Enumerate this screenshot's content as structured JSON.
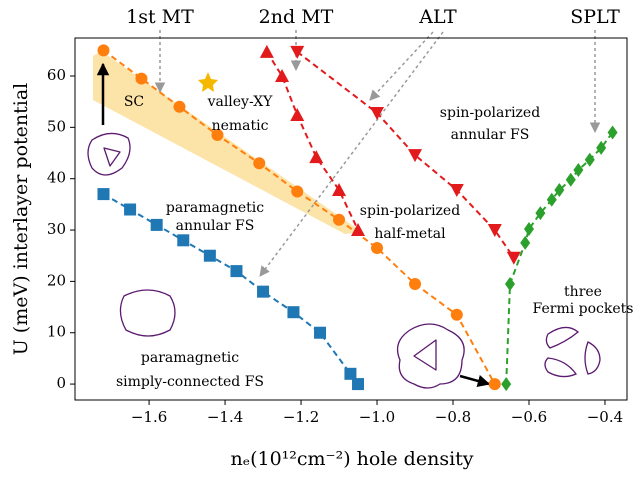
{
  "chart_data": {
    "type": "line",
    "x_label": "nₑ(10¹²cm⁻²) hole density",
    "y_label": "U (meV) interlayer potential",
    "xlim": [
      -1.795,
      -0.342
    ],
    "ylim": [
      -3.1,
      67.4
    ],
    "xticks": [
      {
        "value": -1.6,
        "label": "−1.6"
      },
      {
        "value": -1.4,
        "label": "−1.4"
      },
      {
        "value": -1.2,
        "label": "−1.2"
      },
      {
        "value": -1.0,
        "label": "−1.0"
      },
      {
        "value": -0.8,
        "label": "−0.8"
      },
      {
        "value": -0.6,
        "label": "−0.6"
      },
      {
        "value": -0.4,
        "label": "−0.4"
      }
    ],
    "yticks": [
      0,
      10,
      20,
      30,
      40,
      50,
      60
    ],
    "grid": false,
    "series": [
      {
        "color": "#1f77b4",
        "marker": "square",
        "x": [
          -1.72,
          -1.65,
          -1.58,
          -1.51,
          -1.44,
          -1.37,
          -1.3,
          -1.22,
          -1.15,
          -1.07,
          -1.05
        ],
        "values": [
          37,
          34,
          31,
          28,
          25,
          22,
          18,
          14,
          10,
          2,
          0
        ]
      },
      {
        "color": "#ff7f0e",
        "marker": "circle",
        "x": [
          -1.72,
          -1.62,
          -1.52,
          -1.42,
          -1.31,
          -1.21,
          -1.1,
          -1.0,
          -0.9,
          -0.79,
          -0.69
        ],
        "values": [
          65,
          59.5,
          54,
          48.5,
          43,
          37.5,
          32,
          26.5,
          19.5,
          13.5,
          0
        ]
      },
      {
        "color": "#e31a1c",
        "marker": "triangle-up",
        "x": [
          -1.29,
          -1.25,
          -1.21,
          -1.16,
          -1.1,
          -1.05
        ],
        "values": [
          64.7,
          60,
          52.4,
          44.2,
          37.8,
          30
        ]
      },
      {
        "color": "#e31a1c",
        "marker": "triangle-down",
        "x": [
          -1.21,
          -1.0,
          -0.9,
          -0.79,
          -0.69,
          -0.64
        ],
        "values": [
          64.7,
          52.8,
          44.6,
          37.8,
          30,
          24.6
        ]
      },
      {
        "color": "#2ca02c",
        "marker": "diamond",
        "x": [
          -0.66,
          -0.65,
          -0.61,
          -0.6,
          -0.57,
          -0.54,
          -0.52,
          -0.49,
          -0.47,
          -0.44,
          -0.41,
          -0.38
        ],
        "values": [
          0,
          19.5,
          27.5,
          30.2,
          33.3,
          35.9,
          37.8,
          39.8,
          41.7,
          43.7,
          46,
          49
        ]
      }
    ],
    "annotations": [
      "1st MT",
      "2nd MT",
      "ALT",
      "SPLT",
      "SC",
      "valley-XY",
      "nematic",
      "spin-polarized",
      "annular FS",
      "paramagnetic",
      "annular FS",
      "spin-polarized",
      "half-metal",
      "paramagnetic",
      "simply-connected FS",
      "three",
      "Fermi pockets"
    ]
  }
}
